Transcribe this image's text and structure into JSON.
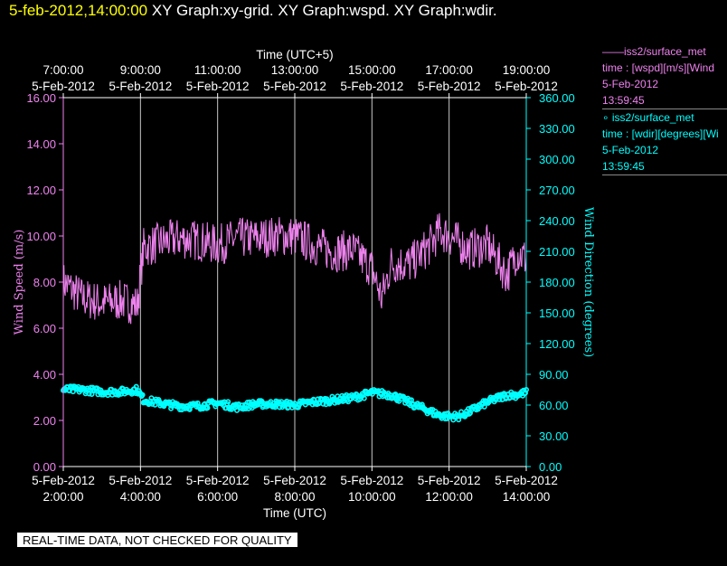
{
  "header": {
    "timestamp": "5-feb-2012,14:00:00",
    "graphs": " XY Graph:xy-grid.  XY Graph:wspd.  XY Graph:wdir."
  },
  "legend": [
    {
      "line1": "——iss2/surface_met",
      "line2": "time : [wspd][m/s][Wind",
      "line3": "5-Feb-2012",
      "line4": "13:59:45",
      "color": "#ee82ee"
    },
    {
      "line1": "∘ iss2/surface_met",
      "line2": "time : [wdir][degrees][Wi",
      "line3": "5-Feb-2012",
      "line4": "13:59:45",
      "color": "#00ffff"
    }
  ],
  "footer": "REAL-TIME DATA, NOT CHECKED FOR QUALITY",
  "chart_data": {
    "type": "line",
    "top_axis_title": "Time (UTC+5)",
    "xlabel": "Time (UTC)",
    "top_ticks": [
      {
        "time": "7:00:00",
        "date": "5-Feb-2012"
      },
      {
        "time": "9:00:00",
        "date": "5-Feb-2012"
      },
      {
        "time": "11:00:00",
        "date": "5-Feb-2012"
      },
      {
        "time": "13:00:00",
        "date": "5-Feb-2012"
      },
      {
        "time": "15:00:00",
        "date": "5-Feb-2012"
      },
      {
        "time": "17:00:00",
        "date": "5-Feb-2012"
      },
      {
        "time": "19:00:00",
        "date": "5-Feb-2012"
      }
    ],
    "bottom_ticks": [
      {
        "date": "5-Feb-2012",
        "time": "2:00:00"
      },
      {
        "date": "5-Feb-2012",
        "time": "4:00:00"
      },
      {
        "date": "5-Feb-2012",
        "time": "6:00:00"
      },
      {
        "date": "5-Feb-2012",
        "time": "8:00:00"
      },
      {
        "date": "5-Feb-2012",
        "time": "10:00:00"
      },
      {
        "date": "5-Feb-2012",
        "time": "12:00:00"
      },
      {
        "date": "5-Feb-2012",
        "time": "14:00:00"
      }
    ],
    "xlim": [
      "02:00",
      "14:00"
    ],
    "y_left": {
      "label": "Wind Speed (m/s)",
      "ylim": [
        0,
        16
      ],
      "ticks": [
        "0.00",
        "2.00",
        "4.00",
        "6.00",
        "8.00",
        "10.00",
        "12.00",
        "14.00",
        "16.00"
      ],
      "color": "#ee82ee"
    },
    "y_right": {
      "label": "Wind Direction (degrees)",
      "ylim": [
        0,
        360
      ],
      "ticks": [
        "0.00",
        "30.00",
        "60.00",
        "90.00",
        "120.00",
        "150.00",
        "180.00",
        "210.00",
        "240.00",
        "270.00",
        "300.00",
        "330.00",
        "360.00"
      ],
      "color": "#00ffff"
    },
    "grid": "vertical",
    "series": [
      {
        "axis": "left",
        "style": "line",
        "color": "#ee82ee",
        "x": [
          "02:00",
          "02:30",
          "03:00",
          "03:30",
          "03:55",
          "04:05",
          "04:30",
          "05:00",
          "05:30",
          "06:00",
          "06:30",
          "07:00",
          "07:30",
          "08:00",
          "08:30",
          "09:00",
          "09:30",
          "10:00",
          "10:15",
          "10:30",
          "11:00",
          "11:30",
          "11:45",
          "12:00",
          "12:30",
          "13:00",
          "13:30",
          "13:45",
          "14:00"
        ],
        "values": [
          8.0,
          7.3,
          7.1,
          7.2,
          7.0,
          9.5,
          9.7,
          9.9,
          9.8,
          9.6,
          9.9,
          9.9,
          10.0,
          10.0,
          9.6,
          9.3,
          9.4,
          8.6,
          7.3,
          8.8,
          8.8,
          9.6,
          10.2,
          10.0,
          9.4,
          9.6,
          8.3,
          9.3,
          9.0
        ],
        "amplitude": 0.9
      },
      {
        "axis": "right",
        "style": "markers",
        "color": "#00ffff",
        "x": [
          "02:00",
          "02:30",
          "03:00",
          "03:30",
          "03:55",
          "04:05",
          "04:30",
          "05:00",
          "05:30",
          "06:00",
          "06:30",
          "07:00",
          "07:30",
          "08:00",
          "08:30",
          "09:00",
          "09:30",
          "10:00",
          "10:30",
          "11:00",
          "11:30",
          "11:45",
          "12:00",
          "12:15",
          "12:30",
          "13:00",
          "13:30",
          "13:45",
          "14:00"
        ],
        "values": [
          75,
          75,
          73,
          73,
          75,
          65,
          62,
          59,
          59,
          62,
          58,
          61,
          61,
          60,
          63,
          65,
          67,
          72,
          70,
          62,
          54,
          50,
          49,
          49,
          53,
          63,
          70,
          70,
          72
        ],
        "amplitude": 3.5
      }
    ]
  }
}
